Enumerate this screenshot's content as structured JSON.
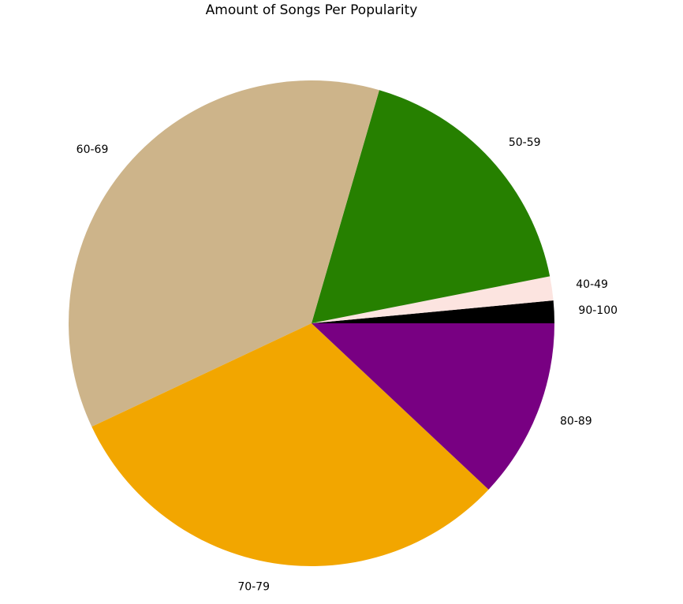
{
  "chart_data": {
    "type": "pie",
    "title": "Amount of Songs Per Popularity",
    "start_angle_deg": 0,
    "direction": "counterclockwise",
    "slices": [
      {
        "label": "90-100",
        "value": 1.5,
        "color": "#000000"
      },
      {
        "label": "40-49",
        "value": 1.6,
        "color": "#fce4e0"
      },
      {
        "label": "50-59",
        "value": 17.4,
        "color": "#268000"
      },
      {
        "label": "60-69",
        "value": 36.5,
        "color": "#cdb48a"
      },
      {
        "label": "70-79",
        "value": 31.0,
        "color": "#f2a600"
      },
      {
        "label": "80-89",
        "value": 12.0,
        "color": "#780082"
      }
    ]
  }
}
